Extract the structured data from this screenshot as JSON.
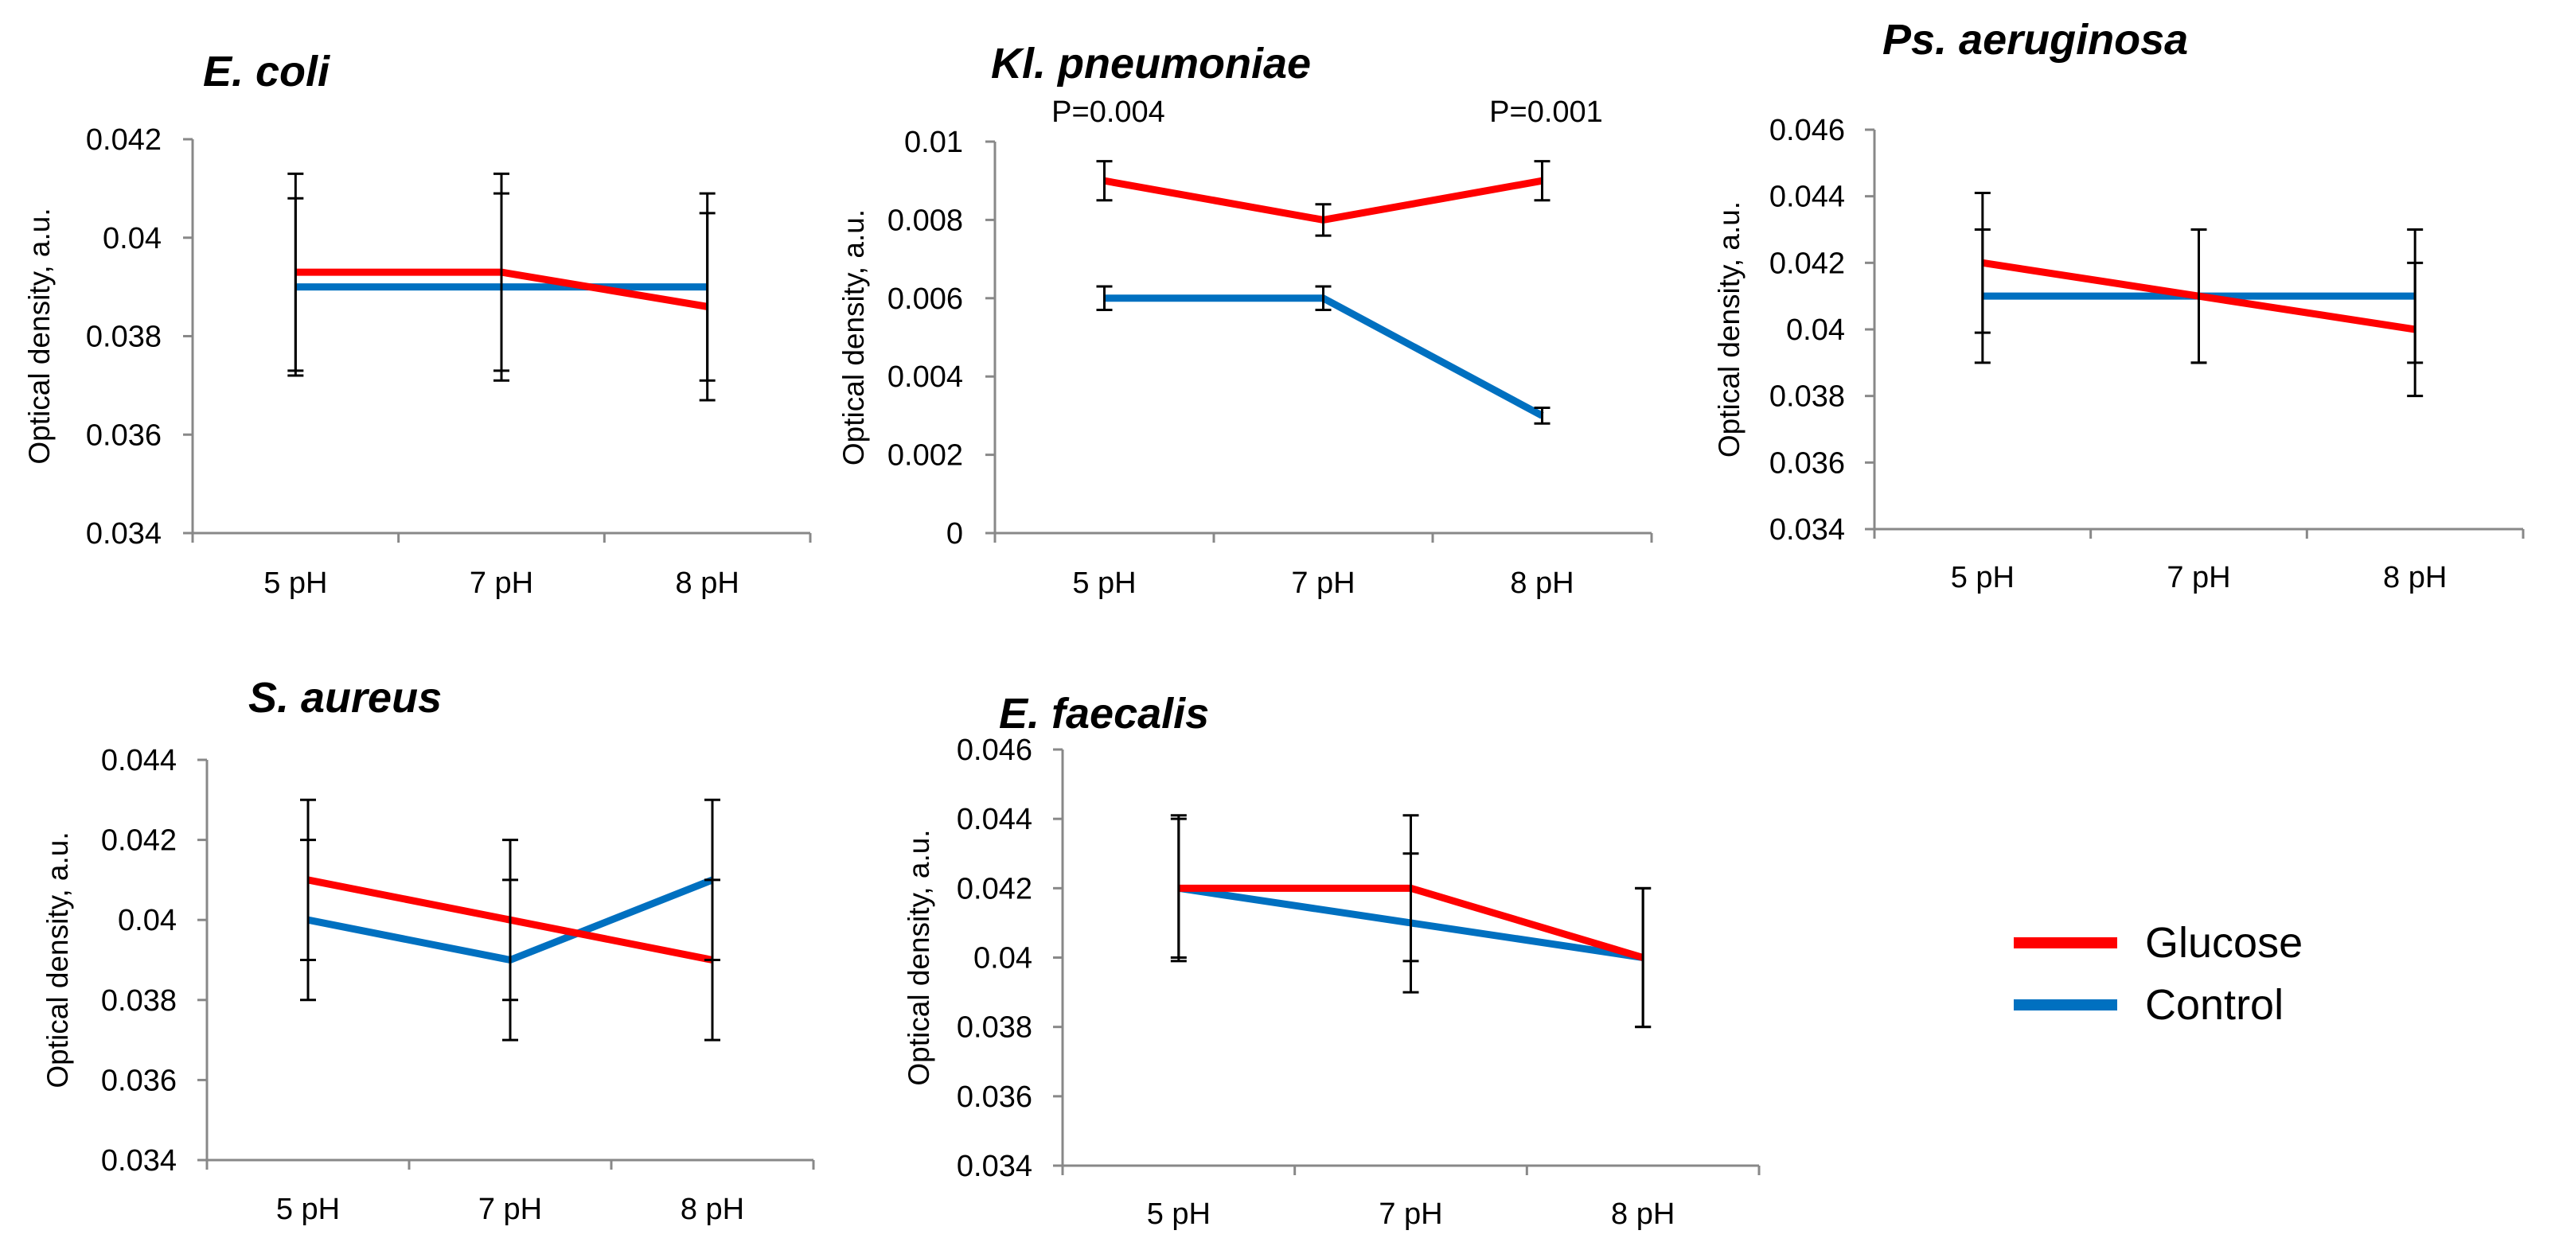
{
  "colors": {
    "glucose": "#ff0000",
    "control": "#0070c0",
    "axis": "#888888",
    "errorbar": "#000000"
  },
  "legend": [
    {
      "name": "Glucose",
      "color_key": "glucose"
    },
    {
      "name": "Control",
      "color_key": "control"
    }
  ],
  "chart_data": [
    {
      "type": "line",
      "title": "E. coli",
      "ylabel": "Optical density, a.u.",
      "categories": [
        "5 pH",
        "7 pH",
        "8 pH"
      ],
      "ylim": [
        0.034,
        0.042
      ],
      "yticks": [
        0.034,
        0.036,
        0.038,
        0.04,
        0.042
      ],
      "ytick_labels": [
        "0.034",
        "0.036",
        "0.038",
        "0.04",
        "0.042"
      ],
      "series": [
        {
          "name": "Glucose",
          "values": [
            0.0393,
            0.0393,
            0.0386
          ],
          "errors": [
            0.002,
            0.002,
            0.0019
          ]
        },
        {
          "name": "Control",
          "values": [
            0.039,
            0.039,
            0.039
          ],
          "errors": [
            0.0018,
            0.0019,
            0.0019
          ]
        }
      ],
      "annotations": []
    },
    {
      "type": "line",
      "title": "Kl. pneumoniae",
      "ylabel": "Optical density, a.u.",
      "categories": [
        "5 pH",
        "7 pH",
        "8 pH"
      ],
      "ylim": [
        0,
        0.01
      ],
      "yticks": [
        0,
        0.002,
        0.004,
        0.006,
        0.008,
        0.01
      ],
      "ytick_labels": [
        "0",
        "0.002",
        "0.004",
        "0.006",
        "0.008",
        "0.01"
      ],
      "series": [
        {
          "name": "Glucose",
          "values": [
            0.009,
            0.008,
            0.009
          ],
          "errors": [
            0.0005,
            0.0004,
            0.0005
          ]
        },
        {
          "name": "Control",
          "values": [
            0.006,
            0.006,
            0.003
          ],
          "errors": [
            0.0003,
            0.0003,
            0.0002
          ]
        }
      ],
      "annotations": [
        {
          "text": "P=0.004",
          "category_index": 0
        },
        {
          "text": "P=0.001",
          "category_index": 2
        }
      ]
    },
    {
      "type": "line",
      "title": "Ps. aeruginosa",
      "ylabel": "Optical density, a.u.",
      "categories": [
        "5 pH",
        "7 pH",
        "8 pH"
      ],
      "ylim": [
        0.034,
        0.046
      ],
      "yticks": [
        0.034,
        0.036,
        0.038,
        0.04,
        0.042,
        0.044,
        0.046
      ],
      "ytick_labels": [
        "0.034",
        "0.036",
        "0.038",
        "0.04",
        "0.042",
        "0.044",
        "0.046"
      ],
      "series": [
        {
          "name": "Glucose",
          "values": [
            0.042,
            0.041,
            0.04
          ],
          "errors": [
            0.0021,
            0.002,
            0.002
          ]
        },
        {
          "name": "Control",
          "values": [
            0.041,
            0.041,
            0.041
          ],
          "errors": [
            0.002,
            0.002,
            0.002
          ]
        }
      ],
      "annotations": []
    },
    {
      "type": "line",
      "title": "S. aureus",
      "ylabel": "Optical density, a.u.",
      "categories": [
        "5 pH",
        "7 pH",
        "8 pH"
      ],
      "ylim": [
        0.034,
        0.044
      ],
      "yticks": [
        0.034,
        0.036,
        0.038,
        0.04,
        0.042,
        0.044
      ],
      "ytick_labels": [
        "0.034",
        "0.036",
        "0.038",
        "0.04",
        "0.042",
        "0.044"
      ],
      "series": [
        {
          "name": "Glucose",
          "values": [
            0.041,
            0.04,
            0.039
          ],
          "errors": [
            0.002,
            0.002,
            0.002
          ]
        },
        {
          "name": "Control",
          "values": [
            0.04,
            0.039,
            0.041
          ],
          "errors": [
            0.002,
            0.002,
            0.002
          ]
        }
      ],
      "annotations": []
    },
    {
      "type": "line",
      "title": "E. faecalis",
      "ylabel": "Optical density, a.u.",
      "categories": [
        "5 pH",
        "7 pH",
        "8 pH"
      ],
      "ylim": [
        0.034,
        0.046
      ],
      "yticks": [
        0.034,
        0.036,
        0.038,
        0.04,
        0.042,
        0.044,
        0.046
      ],
      "ytick_labels": [
        "0.034",
        "0.036",
        "0.038",
        "0.04",
        "0.042",
        "0.044",
        "0.046"
      ],
      "series": [
        {
          "name": "Glucose",
          "values": [
            0.042,
            0.042,
            0.04
          ],
          "errors": [
            0.0021,
            0.0021,
            0.002
          ]
        },
        {
          "name": "Control",
          "values": [
            0.042,
            0.041,
            0.04
          ],
          "errors": [
            0.002,
            0.002,
            0.002
          ]
        }
      ],
      "annotations": []
    }
  ]
}
